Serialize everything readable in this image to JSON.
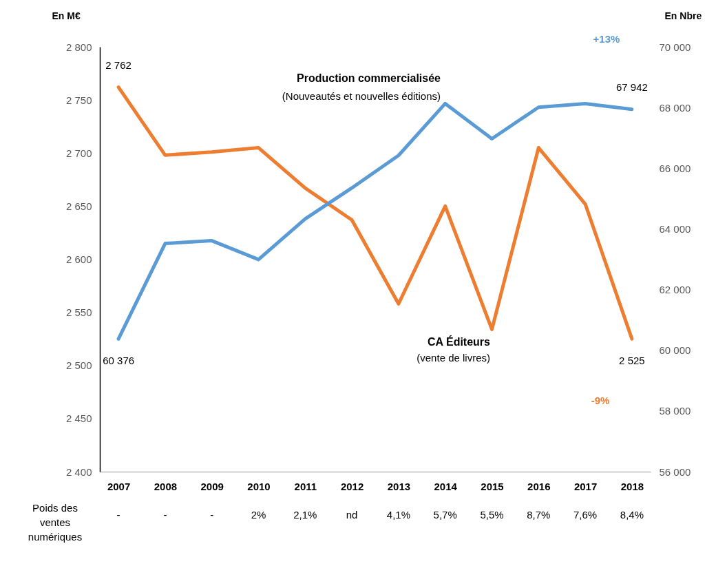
{
  "chart_data": {
    "type": "line",
    "categories": [
      "2007",
      "2008",
      "2009",
      "2010",
      "2011",
      "2012",
      "2013",
      "2014",
      "2015",
      "2016",
      "2017",
      "2018"
    ],
    "series": [
      {
        "name": "CA Éditeurs",
        "color": "#ed7d31",
        "values": [
          2762,
          2698,
          2701,
          2705,
          2667,
          2637,
          2558,
          2650,
          2534,
          2705,
          2652,
          2525
        ],
        "value_labels": [
          "2 762",
          null,
          null,
          null,
          null,
          null,
          null,
          null,
          null,
          null,
          null,
          "2 525"
        ]
      },
      {
        "name": "Production commercialisée",
        "axis": "y2",
        "color": "#5b9bd5",
        "values": [
          60376,
          63520,
          63610,
          62990,
          64330,
          65350,
          66420,
          68130,
          66970,
          68010,
          68130,
          67942
        ],
        "value_labels": [
          "60 376",
          null,
          null,
          null,
          null,
          null,
          null,
          null,
          null,
          null,
          null,
          "67 942"
        ]
      }
    ],
    "ylabel": "En M€",
    "y2label": "En Nbre",
    "ylim": [
      2400,
      2800
    ],
    "yticks": [
      {
        "value": 2400,
        "label": "2 400"
      },
      {
        "value": 2450,
        "label": "2 450"
      },
      {
        "value": 2500,
        "label": "2 500"
      },
      {
        "value": 2550,
        "label": "2 550"
      },
      {
        "value": 2600,
        "label": "2 600"
      },
      {
        "value": 2650,
        "label": "2 650"
      },
      {
        "value": 2700,
        "label": "2 700"
      },
      {
        "value": 2750,
        "label": "2 750"
      },
      {
        "value": 2800,
        "label": "2 800"
      }
    ],
    "y2lim": [
      56000,
      70000
    ],
    "y2ticks": [
      {
        "value": 56000,
        "label": "56 000"
      },
      {
        "value": 58000,
        "label": "58 000"
      },
      {
        "value": 60000,
        "label": "60 000"
      },
      {
        "value": 62000,
        "label": "62 000"
      },
      {
        "value": 64000,
        "label": "64 000"
      },
      {
        "value": 66000,
        "label": "66 000"
      },
      {
        "value": 68000,
        "label": "68 000"
      },
      {
        "value": 70000,
        "label": "70 000"
      }
    ],
    "annotations": [
      "(Nouveautés et nouvelles éditions)",
      "(vente de livres)",
      "+13%",
      "-9%",
      "Poids des ventes numériques",
      "-",
      "-",
      "-",
      "2%",
      "2,1%",
      "nd",
      "4,1%",
      "5,7%",
      "5,5%",
      "8,7%",
      "7,6%",
      "8,4%"
    ]
  }
}
